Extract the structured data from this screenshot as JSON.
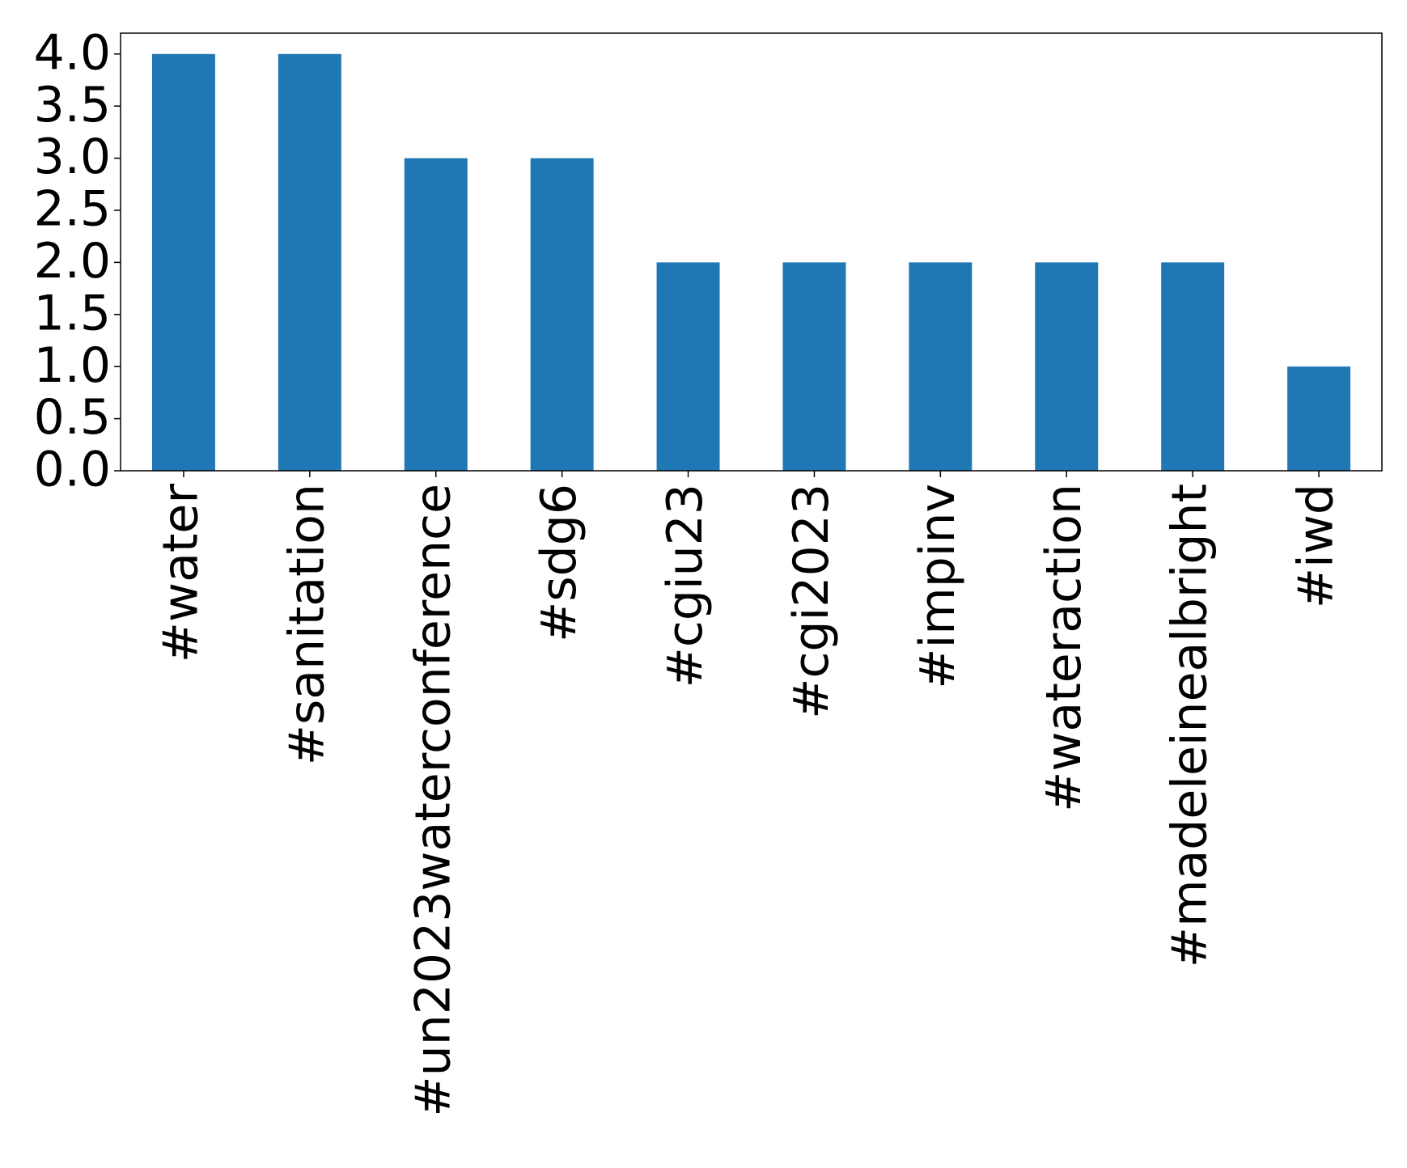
{
  "chart_data": {
    "type": "bar",
    "categories": [
      "#water",
      "#sanitation",
      "#un2023waterconference",
      "#sdg6",
      "#cgiu23",
      "#cgi2023",
      "#impinv",
      "#wateraction",
      "#madeleinealbright",
      "#iwd"
    ],
    "values": [
      4,
      4,
      3,
      3,
      2,
      2,
      2,
      2,
      2,
      1
    ],
    "color": "#1f77b4",
    "ylim": [
      0,
      4.2
    ],
    "yticks": [
      {
        "value": 0,
        "label": "0.0"
      },
      {
        "value": 0.5,
        "label": "0.5"
      },
      {
        "value": 1,
        "label": "1.0"
      },
      {
        "value": 1.5,
        "label": "1.5"
      },
      {
        "value": 2,
        "label": "2.0"
      },
      {
        "value": 2.5,
        "label": "2.5"
      },
      {
        "value": 3,
        "label": "3.0"
      },
      {
        "value": 3.5,
        "label": "3.5"
      },
      {
        "value": 4,
        "label": "4.0"
      }
    ],
    "grid": false
  }
}
